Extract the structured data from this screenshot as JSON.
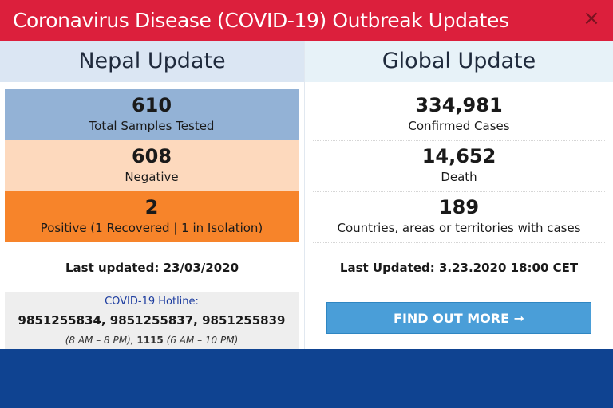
{
  "modal": {
    "title": "Coronavirus Disease (COVID-19) Outbreak Updates",
    "close_symbol": "×"
  },
  "nepal": {
    "heading": "Nepal Update",
    "stats": [
      {
        "value": "610",
        "label": "Total Samples Tested",
        "color": "#93b2d6"
      },
      {
        "value": "608",
        "label": "Negative",
        "color": "#fdd9bd"
      },
      {
        "value": "2",
        "label": "Positive (1 Recovered | 1 in Isolation)",
        "color": "#f7842a"
      }
    ],
    "last_updated": "Last updated: 23/03/2020",
    "hotline": {
      "title": "COVID-19 Hotline:",
      "numbers": "9851255834, 9851255837, 9851255839",
      "hours_a": "(8 AM – 8 PM), ",
      "number_b": "1115",
      "hours_b": " (6 AM – 10 PM)"
    }
  },
  "global": {
    "heading": "Global Update",
    "stats": [
      {
        "value": "334,981",
        "label": "Confirmed Cases"
      },
      {
        "value": "14,652",
        "label": "Death"
      },
      {
        "value": "189",
        "label": "Countries, areas or territories with cases"
      }
    ],
    "last_updated": "Last Updated: 3.23.2020 18:00 CET",
    "cta_label": "FIND OUT MORE",
    "cta_icon": "arrow-right-icon",
    "cta_arrow": "➞"
  },
  "colors": {
    "header": "#dc1f3c",
    "band": "#0f4391",
    "cta": "#4a9ed8"
  }
}
